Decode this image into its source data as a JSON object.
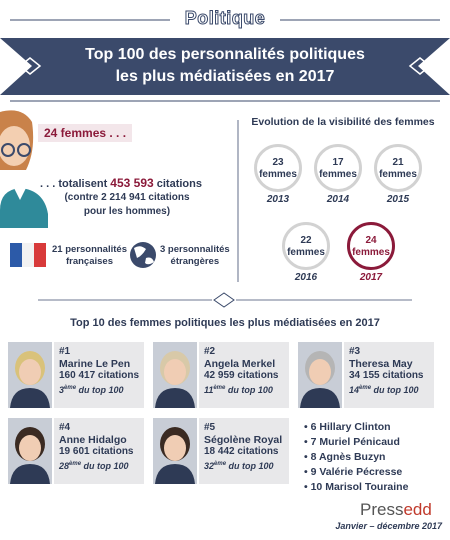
{
  "header": {
    "badge": "Politique",
    "title_line1": "Top 100 des personnalités politiques",
    "title_line2": "les plus médiatisées en 2017"
  },
  "women": {
    "count": "24 femmes . . .",
    "lead": ". . . totalisent",
    "total": "453 593",
    "unit": "citations",
    "note_line1": "(contre 2 214 941 citations",
    "note_line2": "pour les hommes)",
    "french": {
      "line1": "21 personnalités",
      "line2": "françaises"
    },
    "foreign": {
      "line1": "3 personnalités",
      "line2": "étrangères"
    }
  },
  "evolution": {
    "title": "Evolution de la visibilité des femmes",
    "items": [
      {
        "count": "23",
        "unit": "femmes",
        "year": "2013"
      },
      {
        "count": "17",
        "unit": "femmes",
        "year": "2014"
      },
      {
        "count": "21",
        "unit": "femmes",
        "year": "2015"
      },
      {
        "count": "22",
        "unit": "femmes",
        "year": "2016"
      },
      {
        "count": "24",
        "unit": "femmes",
        "year": "2017"
      }
    ]
  },
  "top10": {
    "title": "Top 10 des femmes politiques les plus médiatisées en 2017",
    "cards": [
      {
        "rank": "#1",
        "name": "Marine Le Pen",
        "citations": "160 417 citations",
        "pos": "3",
        "sup": "ème",
        "rest": "du top 100"
      },
      {
        "rank": "#2",
        "name": "Angela Merkel",
        "citations": "42 959 citations",
        "pos": "11",
        "sup": "ème",
        "rest": "du top 100"
      },
      {
        "rank": "#3",
        "name": "Theresa May",
        "citations": "34 155 citations",
        "pos": "14",
        "sup": "ème",
        "rest": "du top 100"
      },
      {
        "rank": "#4",
        "name": "Anne Hidalgo",
        "citations": "19 601 citations",
        "pos": "28",
        "sup": "ème",
        "rest": "du top 100"
      },
      {
        "rank": "#5",
        "name": "Ségolène Royal",
        "citations": "18 442 citations",
        "pos": "32",
        "sup": "ème",
        "rest": "du top 100"
      }
    ],
    "list": [
      {
        "rank": "6",
        "name": "Hillary Clinton"
      },
      {
        "rank": "7",
        "name": "Muriel Pénicaud"
      },
      {
        "rank": "8",
        "name": "Agnès Buzyn"
      },
      {
        "rank": "9",
        "name": "Valérie Pécresse"
      },
      {
        "rank": "10",
        "name": "Marisol Touraine"
      }
    ]
  },
  "footer": {
    "brand": "Press",
    "brand_accent": "edd",
    "period": "Janvier – décembre 2017"
  }
}
